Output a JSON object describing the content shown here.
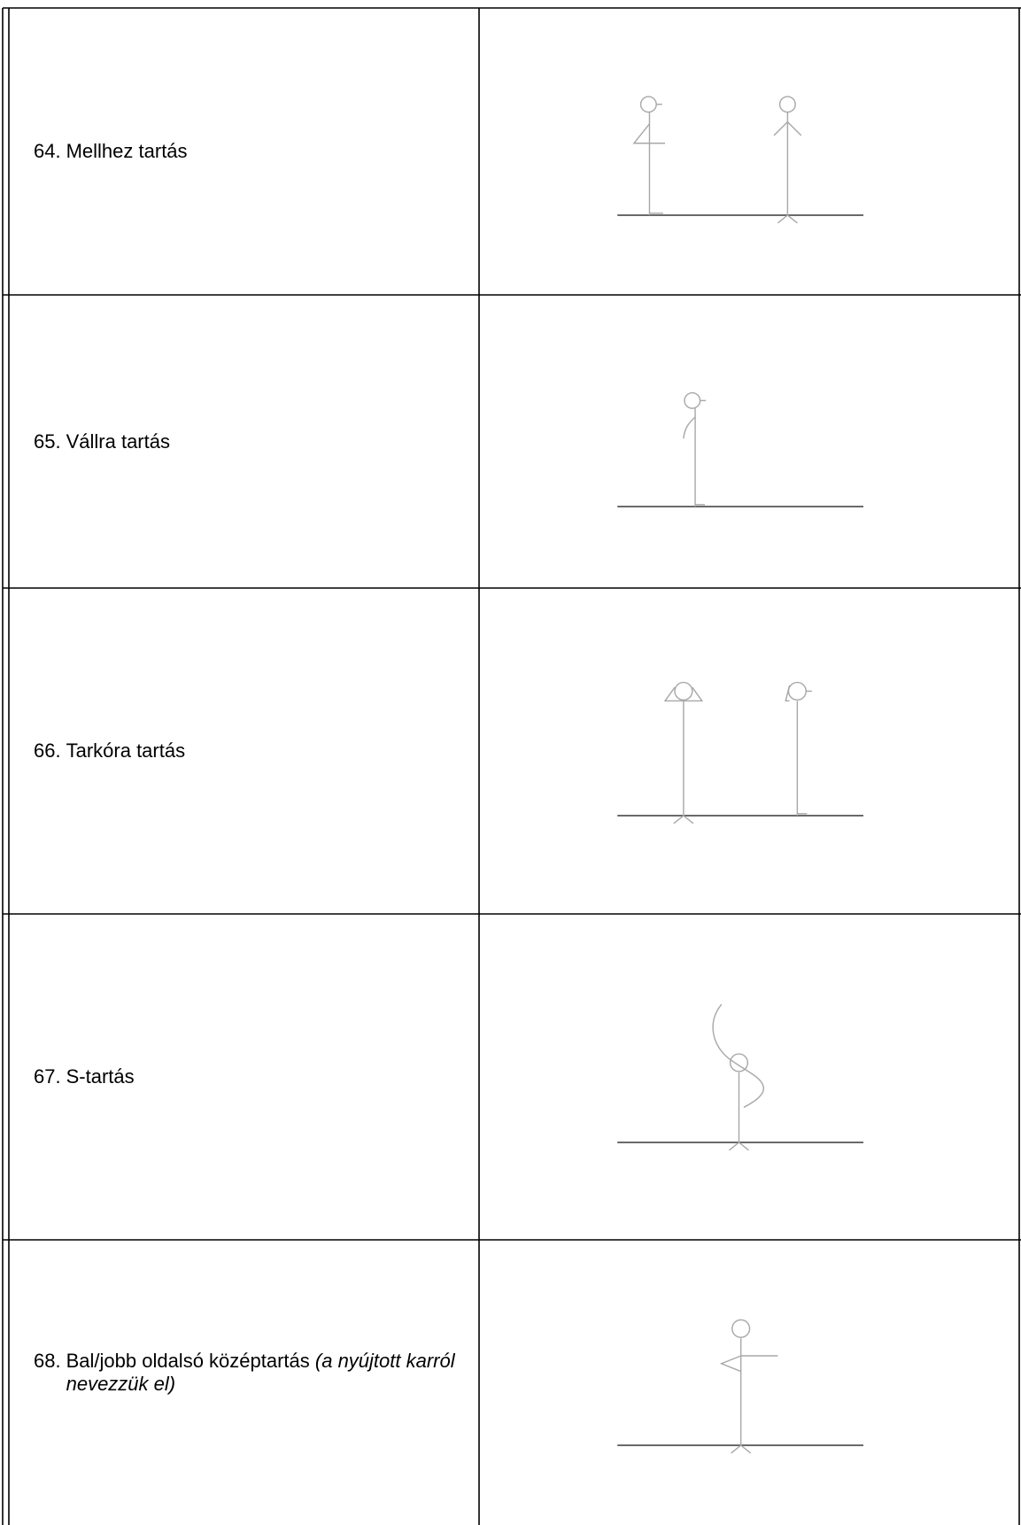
{
  "table": {
    "rows": [
      {
        "number": "64.",
        "text": "Mellhez tartás"
      },
      {
        "number": "65.",
        "text": "Vállra tartás"
      },
      {
        "number": "66.",
        "text": "Tarkóra tartás"
      },
      {
        "number": "67.",
        "text": "S-tartás"
      },
      {
        "number": "68.",
        "text": "Bal/jobb oldalsó középtartás",
        "note": "(a nyújtott karról nevezzük el)"
      }
    ]
  }
}
